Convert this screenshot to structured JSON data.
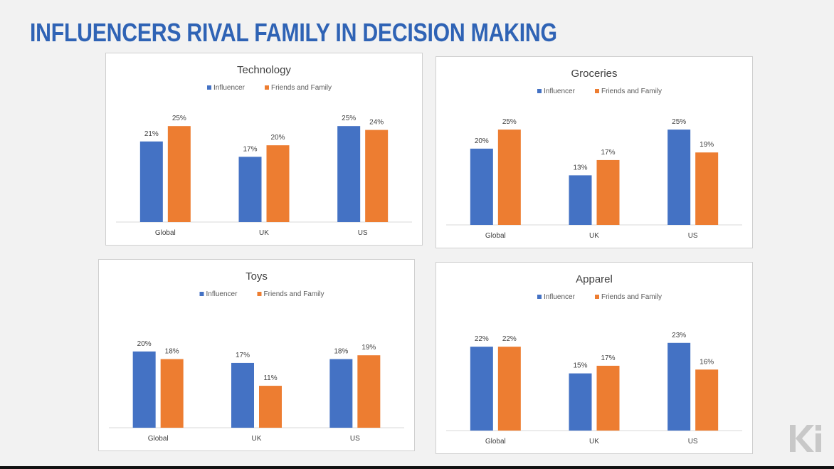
{
  "slide": {
    "title": "INFLUENCERS RIVAL FAMILY IN DECISION MAKING"
  },
  "logo": {
    "icon": "ki-logo",
    "text": "Ki"
  },
  "colors": {
    "title": "#2f63b5",
    "influencer": "#4472c4",
    "friends": "#ed7d31",
    "axis": "#d9d9d9"
  },
  "chart_data": [
    {
      "type": "bar",
      "title": "Technology",
      "categories": [
        "Global",
        "UK",
        "US"
      ],
      "series": [
        {
          "name": "Influencer",
          "values": [
            21,
            17,
            25
          ],
          "labels": [
            "21%",
            "17%",
            "25%"
          ]
        },
        {
          "name": "Friends and Family",
          "values": [
            25,
            20,
            24
          ],
          "labels": [
            "25%",
            "20%",
            "24%"
          ]
        }
      ],
      "legend": "top",
      "grid": false
    },
    {
      "type": "bar",
      "title": "Groceries",
      "categories": [
        "Global",
        "UK",
        "US"
      ],
      "series": [
        {
          "name": "Influencer",
          "values": [
            20,
            13,
            25
          ],
          "labels": [
            "20%",
            "13%",
            "25%"
          ]
        },
        {
          "name": "Friends and Family",
          "values": [
            25,
            17,
            19
          ],
          "labels": [
            "25%",
            "17%",
            "19%"
          ]
        }
      ],
      "legend": "top",
      "grid": false
    },
    {
      "type": "bar",
      "title": "Toys",
      "categories": [
        "Global",
        "UK",
        "US"
      ],
      "series": [
        {
          "name": "Influencer",
          "values": [
            20,
            17,
            18
          ],
          "labels": [
            "20%",
            "17%",
            "18%"
          ]
        },
        {
          "name": "Friends and Family",
          "values": [
            18,
            11,
            19
          ],
          "labels": [
            "18%",
            "11%",
            "19%"
          ]
        }
      ],
      "legend": "top",
      "grid": false
    },
    {
      "type": "bar",
      "title": "Apparel",
      "categories": [
        "Global",
        "UK",
        "US"
      ],
      "series": [
        {
          "name": "Influencer",
          "values": [
            22,
            15,
            23
          ],
          "labels": [
            "22%",
            "15%",
            "23%"
          ]
        },
        {
          "name": "Friends and Family",
          "values": [
            22,
            17,
            16
          ],
          "labels": [
            "22%",
            "17%",
            "16%"
          ]
        }
      ],
      "legend": "top",
      "grid": false
    }
  ]
}
